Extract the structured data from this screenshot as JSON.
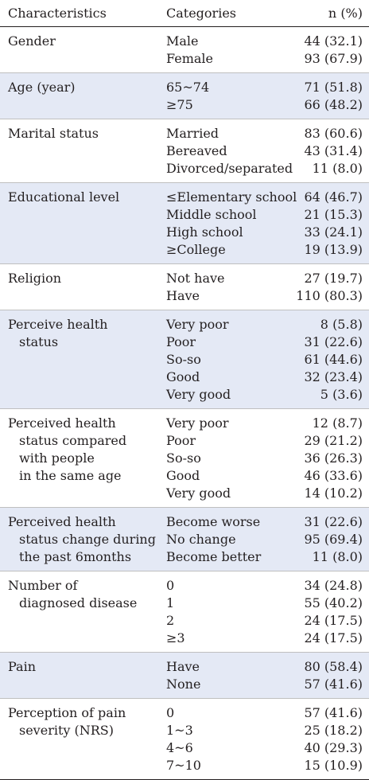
{
  "header": {
    "characteristics": "Characteristics",
    "categories": "Categories",
    "n_pct": "n (%)"
  },
  "groups": [
    {
      "label": [
        "Gender"
      ],
      "rows": [
        [
          "Male",
          "44 (32.1)"
        ],
        [
          "Female",
          "93 (67.9)"
        ]
      ]
    },
    {
      "label": [
        "Age (year)"
      ],
      "rows": [
        [
          "65~74",
          "71 (51.8)"
        ],
        [
          "≥75",
          "66 (48.2)"
        ]
      ]
    },
    {
      "label": [
        "Marital status"
      ],
      "rows": [
        [
          "Married",
          "83 (60.6)"
        ],
        [
          "Bereaved",
          "43 (31.4)"
        ],
        [
          "Divorced/separated",
          "11 (8.0)"
        ]
      ]
    },
    {
      "label": [
        "Educational level"
      ],
      "rows": [
        [
          "≤Elementary school",
          "64 (46.7)"
        ],
        [
          "Middle school",
          "21 (15.3)"
        ],
        [
          "High school",
          "33 (24.1)"
        ],
        [
          "≥College",
          "19 (13.9)"
        ]
      ]
    },
    {
      "label": [
        "Religion"
      ],
      "rows": [
        [
          "Not have",
          "27 (19.7)"
        ],
        [
          "Have",
          "110 (80.3)"
        ]
      ]
    },
    {
      "label": [
        "Perceive health",
        "status"
      ],
      "rows": [
        [
          "Very poor",
          "8 (5.8)"
        ],
        [
          "Poor",
          "31 (22.6)"
        ],
        [
          "So-so",
          "61 (44.6)"
        ],
        [
          "Good",
          "32 (23.4)"
        ],
        [
          "Very good",
          "5 (3.6)"
        ]
      ]
    },
    {
      "label": [
        "Perceived health",
        "status compared",
        "with people",
        "in the same age"
      ],
      "rows": [
        [
          "Very poor",
          "12 (8.7)"
        ],
        [
          "Poor",
          "29 (21.2)"
        ],
        [
          "So-so",
          "36 (26.3)"
        ],
        [
          "Good",
          "46 (33.6)"
        ],
        [
          "Very good",
          "14 (10.2)"
        ]
      ]
    },
    {
      "label": [
        "Perceived health",
        "status change during",
        "the past 6months"
      ],
      "rows": [
        [
          "Become worse",
          "31 (22.6)"
        ],
        [
          "No change",
          "95 (69.4)"
        ],
        [
          "Become better",
          "11 (8.0)"
        ]
      ]
    },
    {
      "label": [
        "Number of",
        "diagnosed disease"
      ],
      "rows": [
        [
          "0",
          "34 (24.8)"
        ],
        [
          "1",
          "55 (40.2)"
        ],
        [
          "2",
          "24 (17.5)"
        ],
        [
          "≥3",
          "24 (17.5)"
        ]
      ]
    },
    {
      "label": [
        "Pain"
      ],
      "rows": [
        [
          "Have",
          "80 (58.4)"
        ],
        [
          "None",
          "57 (41.6)"
        ]
      ]
    },
    {
      "label": [
        "Perception of pain",
        "severity (NRS)"
      ],
      "rows": [
        [
          "0",
          "57 (41.6)"
        ],
        [
          "1~3",
          "25 (18.2)"
        ],
        [
          "4~6",
          "40 (29.3)"
        ],
        [
          "7~10",
          "15 (10.9)"
        ]
      ]
    }
  ]
}
